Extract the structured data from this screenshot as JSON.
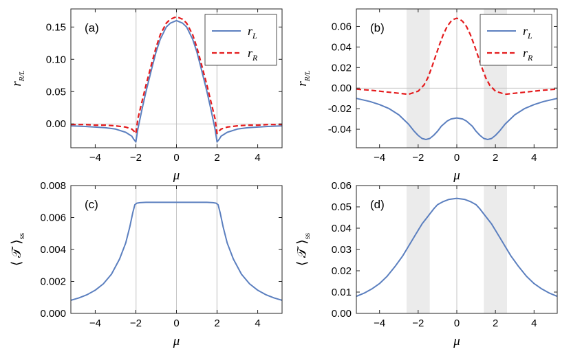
{
  "colors": {
    "rL": "#5b7fbf",
    "rR": "#e41a1c",
    "shade": "#ebebeb",
    "zero": "#b8b8b8"
  },
  "chart_data": [
    {
      "panel": "(a)",
      "type": "line",
      "xlabel": "μ",
      "ylabel_main": "r",
      "ylabel_sub": "R/L",
      "xlim": [
        -5.2,
        5.2
      ],
      "ylim": [
        -0.037,
        0.178
      ],
      "xticks": [
        -4,
        -2,
        0,
        2,
        4
      ],
      "yticks": [
        0.0,
        0.05,
        0.1,
        0.15
      ],
      "ytick_labels": [
        "0.00",
        "0.05",
        "0.10",
        "0.15"
      ],
      "shaded_bands": [
        [
          -2.05,
          -1.95
        ],
        [
          1.95,
          2.05
        ]
      ],
      "legend": "top-right",
      "series": [
        {
          "name": "r",
          "sub": "L",
          "style": "solid",
          "x": [
            -5.2,
            -4.5,
            -4,
            -3.5,
            -3,
            -2.5,
            -2.2,
            -2.1,
            -2.0,
            -1.9,
            -1.7,
            -1.5,
            -1.2,
            -1,
            -0.8,
            -0.5,
            -0.3,
            0,
            0.3,
            0.5,
            0.8,
            1,
            1.2,
            1.5,
            1.7,
            1.9,
            2.0,
            2.1,
            2.2,
            2.5,
            3,
            3.5,
            4,
            4.5,
            5.2
          ],
          "y": [
            -0.003,
            -0.004,
            -0.005,
            -0.006,
            -0.008,
            -0.013,
            -0.019,
            -0.024,
            -0.028,
            -0.008,
            0.022,
            0.05,
            0.088,
            0.112,
            0.131,
            0.15,
            0.156,
            0.16,
            0.156,
            0.15,
            0.131,
            0.112,
            0.088,
            0.05,
            0.022,
            -0.008,
            -0.028,
            -0.024,
            -0.019,
            -0.013,
            -0.008,
            -0.006,
            -0.005,
            -0.004,
            -0.003
          ]
        },
        {
          "name": "r",
          "sub": "R",
          "style": "dashed",
          "x": [
            -5.2,
            -4.5,
            -4,
            -3.5,
            -3,
            -2.5,
            -2.2,
            -2.1,
            -2.0,
            -1.9,
            -1.7,
            -1.5,
            -1.2,
            -1,
            -0.8,
            -0.5,
            -0.3,
            0,
            0.3,
            0.5,
            0.8,
            1,
            1.2,
            1.5,
            1.7,
            1.9,
            2.0,
            2.1,
            2.2,
            2.5,
            3,
            3.5,
            4,
            4.5,
            5.2
          ],
          "y": [
            -0.001,
            -0.001,
            -0.002,
            -0.002,
            -0.003,
            -0.005,
            -0.008,
            -0.011,
            -0.015,
            0.008,
            0.034,
            0.06,
            0.096,
            0.119,
            0.138,
            0.156,
            0.162,
            0.166,
            0.162,
            0.156,
            0.138,
            0.119,
            0.096,
            0.06,
            0.034,
            0.008,
            -0.015,
            -0.011,
            -0.008,
            -0.005,
            -0.003,
            -0.002,
            -0.002,
            -0.001,
            -0.001
          ]
        }
      ]
    },
    {
      "panel": "(b)",
      "type": "line",
      "xlabel": "μ",
      "ylabel_main": "r",
      "ylabel_sub": "R/L",
      "xlim": [
        -5.2,
        5.2
      ],
      "ylim": [
        -0.058,
        0.077
      ],
      "xticks": [
        -4,
        -2,
        0,
        2,
        4
      ],
      "yticks": [
        -0.04,
        -0.02,
        0.0,
        0.02,
        0.04,
        0.06
      ],
      "ytick_labels": [
        "-0.04",
        "-0.02",
        "0.00",
        "0.02",
        "0.04",
        "0.06"
      ],
      "shaded_bands": [
        [
          -2.6,
          -1.4
        ],
        [
          1.4,
          2.6
        ]
      ],
      "legend": "top-right",
      "series": [
        {
          "name": "r",
          "sub": "L",
          "style": "solid",
          "x": [
            -5.2,
            -4.5,
            -4,
            -3.5,
            -3,
            -2.5,
            -2.2,
            -2,
            -1.8,
            -1.6,
            -1.4,
            -1.2,
            -1,
            -0.8,
            -0.5,
            -0.3,
            0,
            0.3,
            0.5,
            0.8,
            1,
            1.2,
            1.4,
            1.6,
            1.8,
            2,
            2.2,
            2.5,
            3,
            3.5,
            4,
            4.5,
            5.2
          ],
          "y": [
            -0.01,
            -0.013,
            -0.016,
            -0.02,
            -0.026,
            -0.035,
            -0.042,
            -0.046,
            -0.049,
            -0.05,
            -0.049,
            -0.046,
            -0.042,
            -0.037,
            -0.032,
            -0.03,
            -0.029,
            -0.03,
            -0.032,
            -0.037,
            -0.042,
            -0.046,
            -0.049,
            -0.05,
            -0.049,
            -0.046,
            -0.042,
            -0.035,
            -0.026,
            -0.02,
            -0.016,
            -0.013,
            -0.01
          ]
        },
        {
          "name": "r",
          "sub": "R",
          "style": "dashed",
          "x": [
            -5.2,
            -4.5,
            -4,
            -3.5,
            -3,
            -2.5,
            -2,
            -1.7,
            -1.5,
            -1.3,
            -1.1,
            -0.9,
            -0.7,
            -0.5,
            -0.3,
            -0.15,
            0,
            0.15,
            0.3,
            0.5,
            0.7,
            0.9,
            1.1,
            1.3,
            1.5,
            1.7,
            2,
            2.5,
            3,
            3.5,
            4,
            4.5,
            5.2
          ],
          "y": [
            -0.001,
            -0.002,
            -0.003,
            -0.004,
            -0.005,
            -0.006,
            -0.003,
            0.003,
            0.01,
            0.02,
            0.031,
            0.042,
            0.052,
            0.06,
            0.065,
            0.067,
            0.068,
            0.067,
            0.065,
            0.06,
            0.052,
            0.042,
            0.031,
            0.02,
            0.01,
            0.003,
            -0.003,
            -0.006,
            -0.005,
            -0.004,
            -0.003,
            -0.002,
            -0.001
          ]
        }
      ]
    },
    {
      "panel": "(c)",
      "type": "line",
      "xlabel": "μ",
      "ylabel": "⟨ 𝒯 ⟩ss",
      "xlim": [
        -5.2,
        5.2
      ],
      "ylim": [
        0,
        0.008
      ],
      "xticks": [
        -4,
        -2,
        0,
        2,
        4
      ],
      "yticks": [
        0.0,
        0.002,
        0.004,
        0.006,
        0.008
      ],
      "ytick_labels": [
        "0.000",
        "0.002",
        "0.004",
        "0.006",
        "0.008"
      ],
      "shaded_bands": [
        [
          -2.05,
          -1.95
        ],
        [
          1.95,
          2.05
        ]
      ],
      "series": [
        {
          "style": "solid",
          "x": [
            -5.2,
            -4.8,
            -4.4,
            -4,
            -3.6,
            -3.2,
            -2.8,
            -2.5,
            -2.3,
            -2.15,
            -2.05,
            -1.95,
            -1.8,
            -1.5,
            -1,
            -0.5,
            0,
            0.5,
            1,
            1.5,
            1.8,
            1.95,
            2.05,
            2.15,
            2.3,
            2.5,
            2.8,
            3.2,
            3.6,
            4,
            4.4,
            4.8,
            5.2
          ],
          "y": [
            0.00082,
            0.00097,
            0.00117,
            0.00145,
            0.00185,
            0.00245,
            0.0034,
            0.0044,
            0.0054,
            0.0063,
            0.0068,
            0.0069,
            0.00693,
            0.00695,
            0.00695,
            0.00695,
            0.00695,
            0.00695,
            0.00695,
            0.00695,
            0.00693,
            0.0069,
            0.0068,
            0.0063,
            0.0054,
            0.0044,
            0.0034,
            0.00245,
            0.00185,
            0.00145,
            0.00117,
            0.00097,
            0.00082
          ]
        }
      ]
    },
    {
      "panel": "(d)",
      "type": "line",
      "xlabel": "μ",
      "ylabel": "⟨ 𝒯 ⟩ss",
      "xlim": [
        -5.2,
        5.2
      ],
      "ylim": [
        0,
        0.06
      ],
      "xticks": [
        -4,
        -2,
        0,
        2,
        4
      ],
      "yticks": [
        0.0,
        0.01,
        0.02,
        0.03,
        0.04,
        0.05,
        0.06
      ],
      "ytick_labels": [
        "0.00",
        "0.01",
        "0.02",
        "0.03",
        "0.04",
        "0.05",
        "0.06"
      ],
      "shaded_bands": [
        [
          -2.6,
          -1.4
        ],
        [
          1.4,
          2.6
        ]
      ],
      "series": [
        {
          "style": "solid",
          "x": [
            -5.2,
            -4.8,
            -4.4,
            -4,
            -3.6,
            -3.2,
            -2.8,
            -2.5,
            -2.2,
            -2,
            -1.8,
            -1.5,
            -1.2,
            -1,
            -0.7,
            -0.4,
            0,
            0.4,
            0.7,
            1,
            1.2,
            1.5,
            1.8,
            2,
            2.2,
            2.5,
            2.8,
            3.2,
            3.6,
            4,
            4.4,
            4.8,
            5.2
          ],
          "y": [
            0.008,
            0.0095,
            0.0115,
            0.014,
            0.0175,
            0.022,
            0.027,
            0.0315,
            0.036,
            0.039,
            0.042,
            0.0455,
            0.049,
            0.051,
            0.0525,
            0.0535,
            0.054,
            0.0535,
            0.0525,
            0.051,
            0.049,
            0.0455,
            0.042,
            0.039,
            0.036,
            0.0315,
            0.027,
            0.022,
            0.0175,
            0.014,
            0.0115,
            0.0095,
            0.008
          ]
        }
      ]
    }
  ]
}
